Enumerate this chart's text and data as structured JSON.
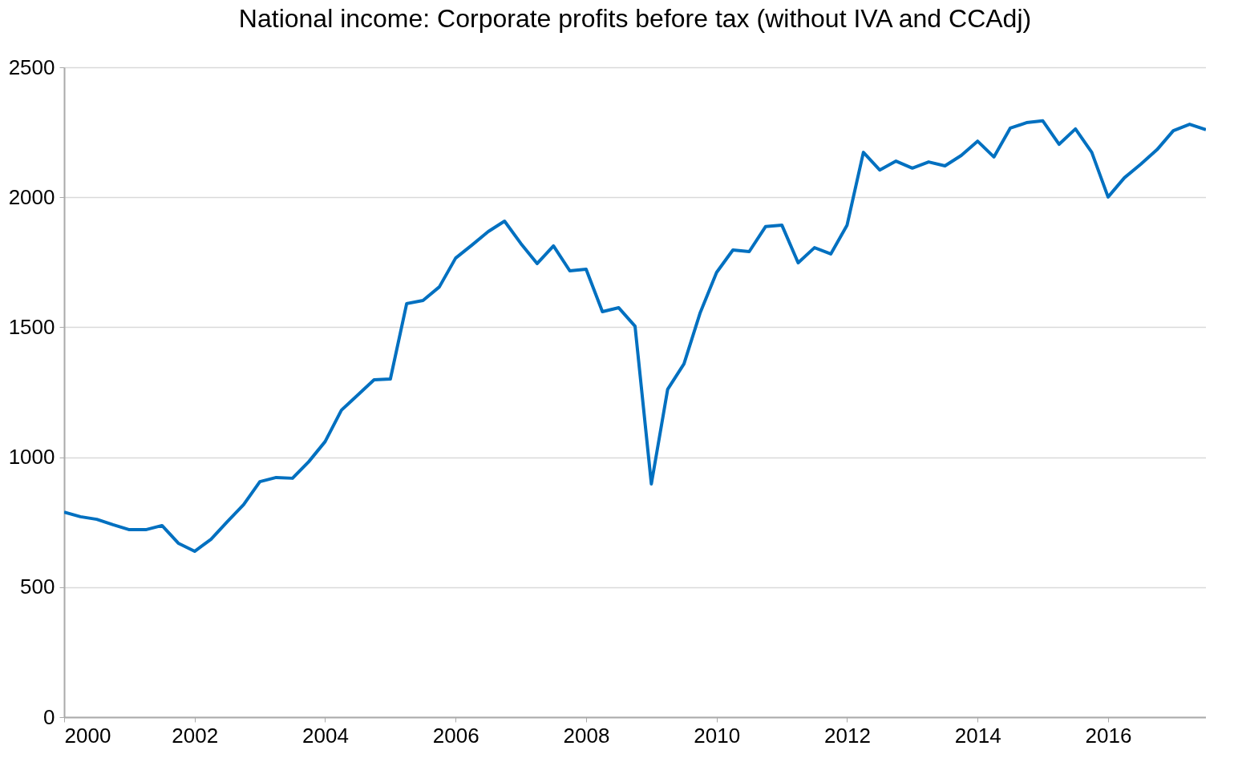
{
  "chart_data": {
    "type": "line",
    "title": "National income: Corporate profits before tax (without IVA and CCAdj)",
    "x": [
      2000,
      2000.25,
      2000.5,
      2000.75,
      2001,
      2001.25,
      2001.5,
      2001.75,
      2002,
      2002.25,
      2002.5,
      2002.75,
      2003,
      2003.25,
      2003.5,
      2003.75,
      2004,
      2004.25,
      2004.5,
      2004.75,
      2005,
      2005.25,
      2005.5,
      2005.75,
      2006,
      2006.25,
      2006.5,
      2006.75,
      2007,
      2007.25,
      2007.5,
      2007.75,
      2008,
      2008.25,
      2008.5,
      2008.75,
      2009,
      2009.25,
      2009.5,
      2009.75,
      2010,
      2010.25,
      2010.5,
      2010.75,
      2011,
      2011.25,
      2011.5,
      2011.75,
      2012,
      2012.25,
      2012.5,
      2012.75,
      2013,
      2013.25,
      2013.5,
      2013.75,
      2014,
      2014.25,
      2014.5,
      2014.75,
      2015,
      2015.25,
      2015.5,
      2015.75,
      2016,
      2016.25,
      2016.5,
      2016.75,
      2017,
      2017.25,
      2017.5
    ],
    "series": [
      {
        "color": "#0070c0",
        "values": [
          789,
          771,
          761,
          740,
          721,
          721,
          737,
          669,
          638,
          684,
          752,
          817,
          906,
          922,
          919,
          983,
          1060,
          1181,
          1239,
          1298,
          1301,
          1591,
          1603,
          1655,
          1766,
          1816,
          1868,
          1908,
          1822,
          1745,
          1813,
          1717,
          1723,
          1560,
          1575,
          1504,
          897,
          1261,
          1359,
          1557,
          1711,
          1797,
          1791,
          1887,
          1893,
          1748,
          1806,
          1782,
          1893,
          2173,
          2105,
          2139,
          2112,
          2136,
          2121,
          2161,
          2216,
          2155,
          2266,
          2287,
          2294,
          2204,
          2263,
          2173,
          2001,
          2075,
          2127,
          2183,
          2256,
          2281,
          2260
        ]
      }
    ],
    "xlim": [
      2000,
      2017.5
    ],
    "xticks": [
      2000,
      2002,
      2004,
      2006,
      2008,
      2010,
      2012,
      2014,
      2016
    ],
    "ylim": [
      0,
      2500
    ],
    "yticks": [
      0,
      500,
      1000,
      1500,
      2000,
      2500
    ],
    "grid": "y",
    "legend": false,
    "marker": "none",
    "line_style": "solid"
  }
}
